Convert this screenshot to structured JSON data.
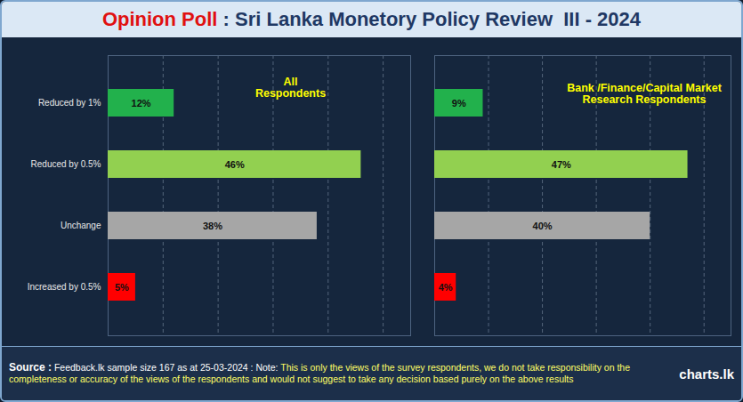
{
  "title_parts": [
    "Opinion Poll",
    " : Sri Lanka Monetory Policy Review  III - 2024"
  ],
  "source_label": "Source :",
  "source": "Feedback.lk sample size 167 as at 25-03-2024 : Note:",
  "note": "This is only the views of the survey respondents, we do not take responsibility on the completeness or accuracy of the views  of the respondents and  would not suggest to take any decision based purely on the above results",
  "brand": "charts.lk",
  "chart_data": [
    {
      "type": "bar",
      "orientation": "horizontal",
      "title": "All Respondents",
      "categories": [
        "Reduced by 1%",
        "Reduced by 0.5%",
        "Unchange",
        "Increased by 0.5%"
      ],
      "values": [
        12,
        46,
        38,
        5
      ],
      "value_labels": [
        "12%",
        "46%",
        "38%",
        "5%"
      ],
      "colors": [
        "#22b14c",
        "#92d050",
        "#a6a6a6",
        "#ff0000"
      ],
      "xlim": [
        0,
        55
      ],
      "xticks": [
        0,
        10,
        20,
        30,
        40,
        50
      ],
      "grid": true,
      "data_labels": true,
      "tick_labels": "y"
    },
    {
      "type": "bar",
      "orientation": "horizontal",
      "title": "Bank /Finance/Capital Market Research Respondents",
      "categories": [
        "Reduced by 1%",
        "Reduced by 0.5%",
        "Unchange",
        "Increased by 0.5%"
      ],
      "values": [
        9,
        47,
        40,
        4
      ],
      "value_labels": [
        "9%",
        "47%",
        "40%",
        "4%"
      ],
      "colors": [
        "#22b14c",
        "#92d050",
        "#a6a6a6",
        "#ff0000"
      ],
      "xlim": [
        0,
        55
      ],
      "xticks": [
        0,
        10,
        20,
        30,
        40,
        50
      ],
      "grid": true,
      "data_labels": true,
      "tick_labels": false
    }
  ]
}
